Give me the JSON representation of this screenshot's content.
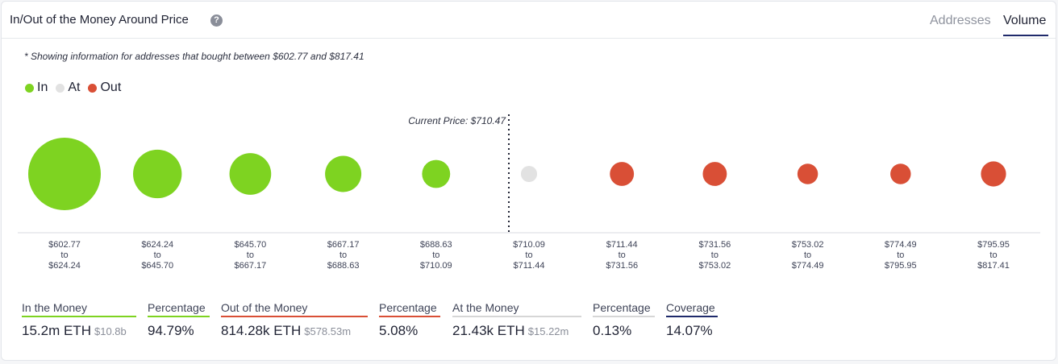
{
  "header": {
    "title": "In/Out of the Money Around Price",
    "tabs": [
      "Addresses",
      "Volume"
    ],
    "active_tab": "Volume"
  },
  "note": "* Showing information for addresses that bought between $602.77 and $817.41",
  "legend": [
    {
      "label": "In",
      "color": "#7ed321"
    },
    {
      "label": "At",
      "color": "#e2e2e2"
    },
    {
      "label": "Out",
      "color": "#d94f36"
    }
  ],
  "chart_data": {
    "type": "scatter",
    "current_price_label": "Current Price: $710.47",
    "current_price": 710.47,
    "bubbles": [
      {
        "status": "In",
        "from": "$602.77",
        "to": "$624.24",
        "volume_rel": 1.0
      },
      {
        "status": "In",
        "from": "$624.24",
        "to": "$645.70",
        "volume_rel": 0.45
      },
      {
        "status": "In",
        "from": "$645.70",
        "to": "$667.17",
        "volume_rel": 0.33
      },
      {
        "status": "In",
        "from": "$667.17",
        "to": "$688.63",
        "volume_rel": 0.25
      },
      {
        "status": "In",
        "from": "$688.63",
        "to": "$710.09",
        "volume_rel": 0.15
      },
      {
        "status": "At",
        "from": "$710.09",
        "to": "$711.44",
        "volume_rel": 0.05
      },
      {
        "status": "Out",
        "from": "$711.44",
        "to": "$731.56",
        "volume_rel": 0.11
      },
      {
        "status": "Out",
        "from": "$731.56",
        "to": "$753.02",
        "volume_rel": 0.11
      },
      {
        "status": "Out",
        "from": "$753.02",
        "to": "$774.49",
        "volume_rel": 0.08
      },
      {
        "status": "Out",
        "from": "$774.49",
        "to": "$795.95",
        "volume_rel": 0.08
      },
      {
        "status": "Out",
        "from": "$795.95",
        "to": "$817.41",
        "volume_rel": 0.12
      }
    ],
    "range_joiner": "to"
  },
  "stats": [
    {
      "label": "In the Money",
      "value": "15.2m ETH",
      "sub": "$10.8b",
      "color": "#7ed321"
    },
    {
      "label": "Percentage",
      "value": "94.79%",
      "sub": "",
      "color": "#7ed321"
    },
    {
      "label": "Out of the Money",
      "value": "814.28k ETH",
      "sub": "$578.53m",
      "color": "#d94f36"
    },
    {
      "label": "Percentage",
      "value": "5.08%",
      "sub": "",
      "color": "#d94f36"
    },
    {
      "label": "At the Money",
      "value": "21.43k ETH",
      "sub": "$15.22m",
      "color": "#d6d6d6"
    },
    {
      "label": "Percentage",
      "value": "0.13%",
      "sub": "",
      "color": "#d6d6d6"
    },
    {
      "label": "Coverage",
      "value": "14.07%",
      "sub": "",
      "color": "#1f2a6b"
    }
  ]
}
